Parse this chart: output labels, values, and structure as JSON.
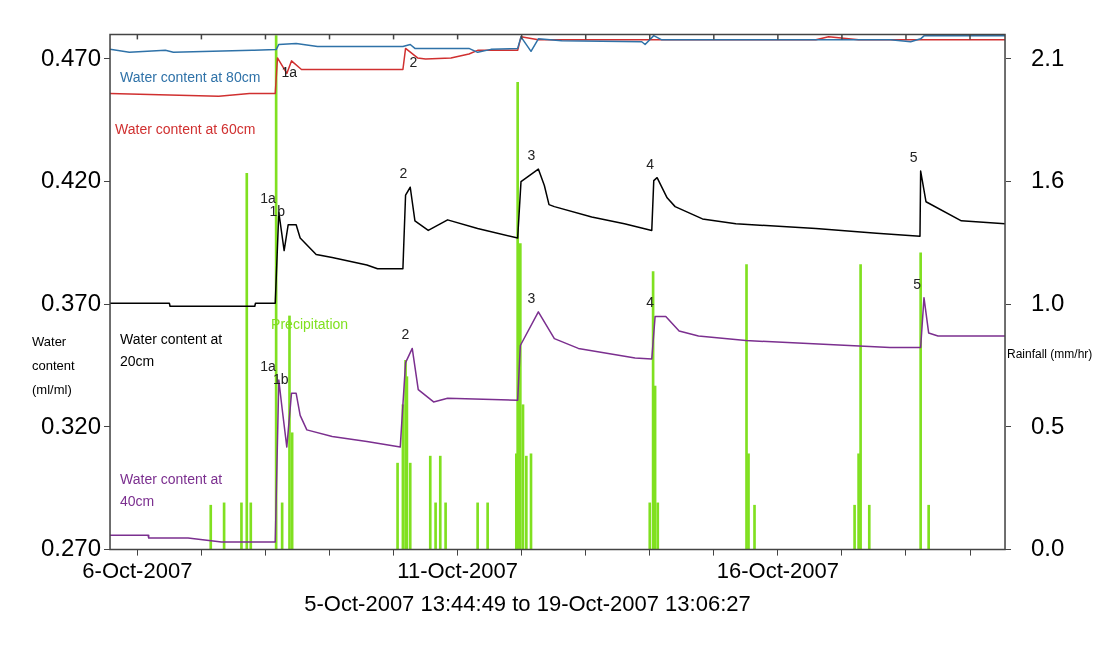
{
  "chart_data": {
    "type": "line",
    "xlabel": "5-Oct-2007 13:44:49 to 19-Oct-2007 13:06:27",
    "ylabel": "Water content (ml/ml)",
    "y2label": "Rainfall (mm/hr)",
    "xlim": [
      "2007-10-05T13:44:49",
      "2007-10-19T13:06:27"
    ],
    "xticks": [
      {
        "value": "2007-10-06",
        "label": "6-Oct-2007"
      },
      {
        "value": "2007-10-07",
        "label": null
      },
      {
        "value": "2007-10-08",
        "label": null
      },
      {
        "value": "2007-10-09",
        "label": null
      },
      {
        "value": "2007-10-10",
        "label": null
      },
      {
        "value": "2007-10-11",
        "label": "11-Oct-2007"
      },
      {
        "value": "2007-10-12",
        "label": null
      },
      {
        "value": "2007-10-13",
        "label": null
      },
      {
        "value": "2007-10-14",
        "label": null
      },
      {
        "value": "2007-10-15",
        "label": null
      },
      {
        "value": "2007-10-16",
        "label": "16-Oct-2007"
      },
      {
        "value": "2007-10-17",
        "label": null
      },
      {
        "value": "2007-10-18",
        "label": null
      },
      {
        "value": "2007-10-19",
        "label": null
      }
    ],
    "ylim": [
      0.27,
      0.48
    ],
    "yticks": [
      {
        "value": 0.27,
        "label": "0.270"
      },
      {
        "value": 0.32,
        "label": "0.320"
      },
      {
        "value": 0.37,
        "label": "0.370"
      },
      {
        "value": 0.42,
        "label": "0.420"
      },
      {
        "value": 0.47,
        "label": "0.470"
      }
    ],
    "y2lim": [
      0,
      2.205
    ],
    "y2ticks": [
      {
        "value": 0,
        "label": "0.0"
      },
      {
        "value": 0.525,
        "label": "0.5"
      },
      {
        "value": 1.05,
        "label": "1.0"
      },
      {
        "value": 1.575,
        "label": "1.6"
      },
      {
        "value": 2.1,
        "label": "2.1"
      }
    ],
    "grid": false,
    "legend": false,
    "series": [
      {
        "name": "Water content at 80cm",
        "color": "#2f72a8",
        "x": [
          "2007-10-05T13:45",
          "2007-10-05T21:00",
          "2007-10-06T10:30",
          "2007-10-06T13:30",
          "2007-10-07T19:00",
          "2007-10-08T04:00",
          "2007-10-08T05:00",
          "2007-10-08T11:30",
          "2007-10-08T19:30",
          "2007-10-10T03:30",
          "2007-10-10T06:15",
          "2007-10-10T08:00",
          "2007-10-11T04:15",
          "2007-10-11T07:30",
          "2007-10-11T12:30",
          "2007-10-11T22:30",
          "2007-10-11T23:45",
          "2007-10-12T03:30",
          "2007-10-12T06:15",
          "2007-10-12T15:00",
          "2007-10-13T21:00",
          "2007-10-13T22:15",
          "2007-10-14T01:30",
          "2007-10-14T04:30",
          "2007-10-17T18:15",
          "2007-10-18T01:45",
          "2007-10-18T05:30",
          "2007-10-18T06:45",
          "2007-10-19T13:06"
        ],
        "values": [
          0.4739,
          0.4727,
          0.4735,
          0.4727,
          0.4735,
          0.4738,
          0.4759,
          0.4763,
          0.4751,
          0.4751,
          0.4759,
          0.4743,
          0.4743,
          0.4727,
          0.4739,
          0.4743,
          0.479,
          0.4731,
          0.4782,
          0.4774,
          0.477,
          0.4759,
          0.4795,
          0.4778,
          0.4778,
          0.477,
          0.4782,
          0.4794,
          0.4794
        ]
      },
      {
        "name": "Water content at 60cm",
        "color": "#d03030",
        "x": [
          "2007-10-05T13:45",
          "2007-10-07T06:30",
          "2007-10-07T18:00",
          "2007-10-08T03:40",
          "2007-10-08T04:30",
          "2007-10-08T08:00",
          "2007-10-08T09:45",
          "2007-10-08T13:30",
          "2007-10-10T03:30",
          "2007-10-10T04:30",
          "2007-10-10T09:00",
          "2007-10-10T12:00",
          "2007-10-10T21:30",
          "2007-10-11T04:15",
          "2007-10-11T07:30",
          "2007-10-11T22:30",
          "2007-10-11T23:45",
          "2007-10-12T06:15",
          "2007-10-16T14:15",
          "2007-10-16T19:00",
          "2007-10-17T06:15",
          "2007-10-19T13:06"
        ],
        "values": [
          0.4559,
          0.4548,
          0.4559,
          0.4559,
          0.4704,
          0.4641,
          0.4692,
          0.4657,
          0.4657,
          0.4743,
          0.4704,
          0.47,
          0.4704,
          0.472,
          0.4735,
          0.4735,
          0.479,
          0.4778,
          0.4778,
          0.479,
          0.4778,
          0.4778
        ]
      },
      {
        "name": "Water content at 20cm",
        "color": "#000000",
        "x": [
          "2007-10-05T13:45",
          "2007-10-06T12:00",
          "2007-10-06T12:15",
          "2007-10-07T20:00",
          "2007-10-07T20:15",
          "2007-10-08T03:40",
          "2007-10-08T05:00",
          "2007-10-08T07:00",
          "2007-10-08T08:30",
          "2007-10-08T11:30",
          "2007-10-08T13:00",
          "2007-10-08T19:00",
          "2007-10-09T01:00",
          "2007-10-09T14:00",
          "2007-10-09T18:00",
          "2007-10-10T03:30",
          "2007-10-10T04:30",
          "2007-10-10T06:15",
          "2007-10-10T08:00",
          "2007-10-10T13:00",
          "2007-10-10T20:15",
          "2007-10-11T07:30",
          "2007-10-11T22:30",
          "2007-10-11T23:45",
          "2007-10-12T06:15",
          "2007-10-12T08:30",
          "2007-10-12T10:15",
          "2007-10-12T12:15",
          "2007-10-13T02:15",
          "2007-10-13T14:30",
          "2007-10-14T00:45",
          "2007-10-14T01:30",
          "2007-10-14T02:45",
          "2007-10-14T06:30",
          "2007-10-14T09:30",
          "2007-10-14T19:45",
          "2007-10-15T08:15",
          "2007-10-16T14:15",
          "2007-10-17T13:00",
          "2007-10-18T05:15",
          "2007-10-18T05:30",
          "2007-10-18T07:30",
          "2007-10-18T20:45",
          "2007-10-19T13:06"
        ],
        "values": [
          0.3704,
          0.3704,
          0.3692,
          0.3692,
          0.3704,
          0.3704,
          0.4075,
          0.3919,
          0.4024,
          0.4024,
          0.397,
          0.3903,
          0.3891,
          0.386,
          0.3845,
          0.3845,
          0.4145,
          0.4177,
          0.404,
          0.4001,
          0.4044,
          0.4009,
          0.397,
          0.42,
          0.4251,
          0.4184,
          0.4106,
          0.4098,
          0.4056,
          0.4028,
          0.4001,
          0.4204,
          0.4216,
          0.4134,
          0.4098,
          0.4048,
          0.4028,
          0.4009,
          0.3989,
          0.3977,
          0.4243,
          0.4118,
          0.404,
          0.4028
        ]
      },
      {
        "name": "Water content at 40cm",
        "color": "#7b2f8f",
        "x": [
          "2007-10-05T13:45",
          "2007-10-06T04:00",
          "2007-10-06T04:15",
          "2007-10-06T19:00",
          "2007-10-07T07:30",
          "2007-10-08T03:40",
          "2007-10-08T05:00",
          "2007-10-08T06:15",
          "2007-10-08T08:00",
          "2007-10-08T09:45",
          "2007-10-08T11:30",
          "2007-10-08T13:00",
          "2007-10-08T15:30",
          "2007-10-09T01:00",
          "2007-10-09T14:00",
          "2007-10-10T02:30",
          "2007-10-10T04:30",
          "2007-10-10T07:00",
          "2007-10-10T09:15",
          "2007-10-10T15:00",
          "2007-10-10T20:15",
          "2007-10-11T22:30",
          "2007-10-11T23:30",
          "2007-10-12T06:15",
          "2007-10-12T12:15",
          "2007-10-12T21:15",
          "2007-10-13T18:30",
          "2007-10-14T00:45",
          "2007-10-14T02:00",
          "2007-10-14T06:00",
          "2007-10-14T11:00",
          "2007-10-14T18:15",
          "2007-10-15T12:00",
          "2007-10-16T19:00",
          "2007-10-17T18:00",
          "2007-10-18T05:30",
          "2007-10-18T06:45",
          "2007-10-18T08:30",
          "2007-10-18T12:00",
          "2007-10-19T13:06"
        ],
        "values": [
          0.2759,
          0.2759,
          0.2747,
          0.2747,
          0.2731,
          0.2731,
          0.3391,
          0.3274,
          0.3118,
          0.3337,
          0.3337,
          0.3247,
          0.3188,
          0.3161,
          0.3141,
          0.3118,
          0.3462,
          0.352,
          0.3352,
          0.3302,
          0.3317,
          0.3309,
          0.3532,
          0.3669,
          0.356,
          0.352,
          0.3481,
          0.3477,
          0.365,
          0.365,
          0.3591,
          0.3571,
          0.3552,
          0.3536,
          0.3524,
          0.3524,
          0.3727,
          0.3583,
          0.3571,
          0.3571
        ]
      },
      {
        "name": "Precipitation",
        "color": "#80e020",
        "type": "bar",
        "axis": "y2",
        "x": [
          "2007-10-07T03:30",
          "2007-10-07T08:30",
          "2007-10-07T15:00",
          "2007-10-07T17:00",
          "2007-10-07T18:30",
          "2007-10-08T04:00",
          "2007-10-08T06:15",
          "2007-10-08T09:00",
          "2007-10-08T10:00",
          "2007-10-10T01:30",
          "2007-10-10T03:30",
          "2007-10-10T04:30",
          "2007-10-10T05:00",
          "2007-10-10T06:15",
          "2007-10-10T13:45",
          "2007-10-10T15:45",
          "2007-10-10T17:30",
          "2007-10-10T19:30",
          "2007-10-11T07:30",
          "2007-10-11T11:15",
          "2007-10-11T22:00",
          "2007-10-11T22:30",
          "2007-10-11T23:30",
          "2007-10-12T00:30",
          "2007-10-12T01:45",
          "2007-10-12T03:30",
          "2007-10-14T00:00",
          "2007-10-14T01:15",
          "2007-10-14T02:00",
          "2007-10-14T03:00",
          "2007-10-15T12:15",
          "2007-10-15T13:00",
          "2007-10-15T15:15",
          "2007-10-17T04:45",
          "2007-10-17T06:15",
          "2007-10-17T07:00",
          "2007-10-17T10:15",
          "2007-10-18T05:30",
          "2007-10-18T08:30"
        ],
        "values": [
          0.19,
          0.2,
          0.2,
          1.61,
          0.2,
          2.2,
          0.2,
          1.0,
          0.5,
          0.37,
          0.62,
          0.81,
          0.74,
          0.37,
          0.4,
          0.2,
          0.4,
          0.2,
          0.2,
          0.2,
          0.41,
          2.0,
          1.31,
          0.62,
          0.4,
          0.41,
          0.2,
          1.19,
          0.7,
          0.2,
          1.22,
          0.41,
          0.19,
          0.19,
          0.41,
          1.22,
          0.19,
          1.27,
          0.19
        ]
      }
    ],
    "annotations": [
      {
        "text": "1a",
        "x": "2007-10-08T04:30",
        "y": 0.4704
      },
      {
        "text": "2",
        "x": "2007-10-10T04:30",
        "y": 0.4743
      },
      {
        "text": "1a",
        "x": "2007-10-08T05:00",
        "y": 0.4075
      },
      {
        "text": "1b",
        "x": "2007-10-08T08:30",
        "y": 0.4024
      },
      {
        "text": "2",
        "x": "2007-10-10T06:15",
        "y": 0.4177
      },
      {
        "text": "3",
        "x": "2007-10-12T06:15",
        "y": 0.4251
      },
      {
        "text": "4",
        "x": "2007-10-14T02:45",
        "y": 0.4216
      },
      {
        "text": "5",
        "x": "2007-10-18T05:30",
        "y": 0.4243
      },
      {
        "text": "1a",
        "x": "2007-10-08T05:00",
        "y": 0.3391
      },
      {
        "text": "1b",
        "x": "2007-10-08T09:45",
        "y": 0.3337
      },
      {
        "text": "2",
        "x": "2007-10-10T07:00",
        "y": 0.352
      },
      {
        "text": "3",
        "x": "2007-10-12T06:15",
        "y": 0.3669
      },
      {
        "text": "4",
        "x": "2007-10-14T02:45",
        "y": 0.365
      },
      {
        "text": "5",
        "x": "2007-10-18T06:45",
        "y": 0.3727
      }
    ]
  }
}
